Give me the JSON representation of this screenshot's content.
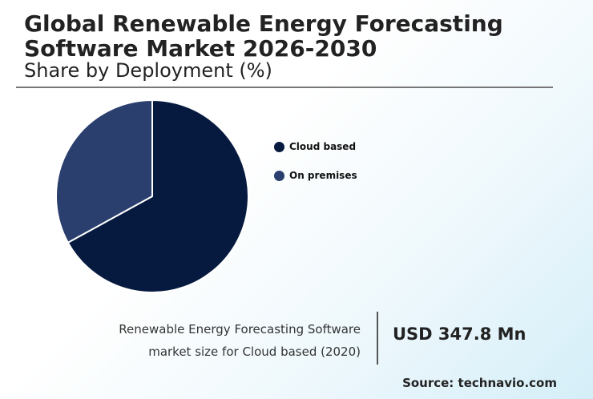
{
  "chart_data": {
    "type": "pie",
    "title": "Global Renewable Energy Forecasting\nSoftware Market 2026-2030",
    "subtitle": "Share by Deployment (%)",
    "categories": [
      "Cloud based",
      "On premises"
    ],
    "values": [
      67,
      33
    ],
    "colors": [
      "#061a40",
      "#2a3f6e"
    ],
    "legend_position": "right"
  },
  "footer": {
    "caption_line1": "Renewable Energy Forecasting Software",
    "caption_line2": "market size for Cloud based (2020)",
    "value": "USD 347.8 Mn",
    "source": "Source: technavio.com"
  }
}
